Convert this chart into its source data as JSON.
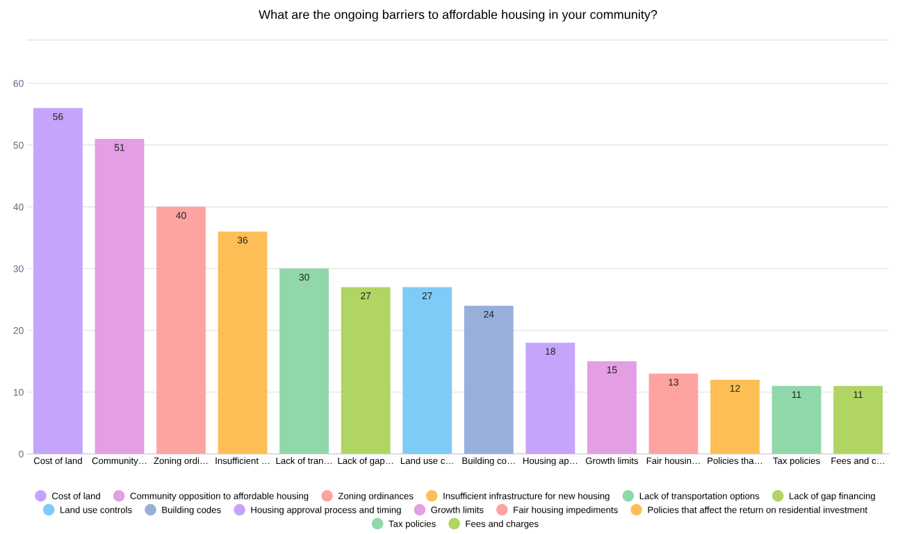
{
  "chart_data": {
    "type": "bar",
    "title": "What are the ongoing barriers to affordable housing in your community?",
    "categories": [
      "Cost of land",
      "Community…",
      "Zoning ordi…",
      "Insufficient …",
      "Lack of tran…",
      "Lack of gap…",
      "Land use c…",
      "Building co…",
      "Housing ap…",
      "Growth limits",
      "Fair housin…",
      "Policies tha…",
      "Tax policies",
      "Fees and c…"
    ],
    "series": [
      {
        "name": "Cost of land",
        "color": "#c4a5fb",
        "values": [
          56,
          null,
          null,
          null,
          null,
          null,
          null,
          null,
          null,
          null,
          null,
          null,
          null,
          null
        ]
      },
      {
        "name": "Community opposition to affordable housing",
        "color": "#e49ee3",
        "values": [
          null,
          51,
          null,
          null,
          null,
          null,
          null,
          null,
          null,
          null,
          null,
          null,
          null,
          null
        ]
      },
      {
        "name": "Zoning ordinances",
        "color": "#fda4a1",
        "values": [
          null,
          null,
          40,
          null,
          null,
          null,
          null,
          null,
          null,
          null,
          null,
          null,
          null,
          null
        ]
      },
      {
        "name": "Insufficient infrastructure for new housing",
        "color": "#fdbf55",
        "values": [
          null,
          null,
          null,
          36,
          null,
          null,
          null,
          null,
          null,
          null,
          null,
          null,
          null,
          null
        ]
      },
      {
        "name": "Lack of transportation options",
        "color": "#90d8aa",
        "values": [
          null,
          null,
          null,
          null,
          30,
          null,
          null,
          null,
          null,
          null,
          null,
          null,
          null,
          null
        ]
      },
      {
        "name": "Lack of gap financing",
        "color": "#b0d563",
        "values": [
          null,
          null,
          null,
          null,
          null,
          27,
          null,
          null,
          null,
          null,
          null,
          null,
          null,
          null
        ]
      },
      {
        "name": "Land use controls",
        "color": "#7ecbf8",
        "values": [
          null,
          null,
          null,
          null,
          null,
          null,
          27,
          null,
          null,
          null,
          null,
          null,
          null,
          null
        ]
      },
      {
        "name": "Building codes",
        "color": "#98afdb",
        "values": [
          null,
          null,
          null,
          null,
          null,
          null,
          null,
          24,
          null,
          null,
          null,
          null,
          null,
          null
        ]
      },
      {
        "name": "Housing approval process and timing",
        "color": "#c4a5fb",
        "values": [
          null,
          null,
          null,
          null,
          null,
          null,
          null,
          null,
          18,
          null,
          null,
          null,
          null,
          null
        ]
      },
      {
        "name": "Growth limits",
        "color": "#e49ee3",
        "values": [
          null,
          null,
          null,
          null,
          null,
          null,
          null,
          null,
          null,
          15,
          null,
          null,
          null,
          null
        ]
      },
      {
        "name": "Fair housing impediments",
        "color": "#fda4a1",
        "values": [
          null,
          null,
          null,
          null,
          null,
          null,
          null,
          null,
          null,
          null,
          13,
          null,
          null,
          null
        ]
      },
      {
        "name": "Policies that affect the return on residential investment",
        "color": "#fdbf55",
        "values": [
          null,
          null,
          null,
          null,
          null,
          null,
          null,
          null,
          null,
          null,
          null,
          12,
          null,
          null
        ]
      },
      {
        "name": "Tax policies",
        "color": "#90d8aa",
        "values": [
          null,
          null,
          null,
          null,
          null,
          null,
          null,
          null,
          null,
          null,
          null,
          null,
          11,
          null
        ]
      },
      {
        "name": "Fees and charges",
        "color": "#b0d563",
        "values": [
          null,
          null,
          null,
          null,
          null,
          null,
          null,
          null,
          null,
          null,
          null,
          null,
          null,
          11
        ]
      }
    ],
    "ylim": [
      0,
      67
    ],
    "yticks": [
      0,
      10,
      20,
      30,
      40,
      50,
      60
    ],
    "grid": "y",
    "legend": "bottom",
    "data_labels": true,
    "marker": "circle"
  }
}
